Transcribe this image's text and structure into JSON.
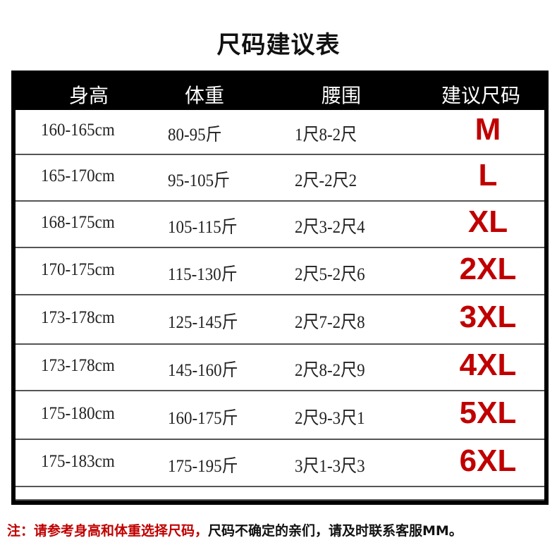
{
  "title": "尺码建议表",
  "table": {
    "headers": [
      "身高",
      "体重",
      "腰围",
      "建议尺码"
    ],
    "rows": [
      {
        "height": "160-165cm",
        "weight": "80-95斤",
        "waist": "1尺8-2尺",
        "size": "M"
      },
      {
        "height": "165-170cm",
        "weight": "95-105斤",
        "waist": "2尺-2尺2",
        "size": "L"
      },
      {
        "height": "168-175cm",
        "weight": "105-115斤",
        "waist": "2尺3-2尺4",
        "size": "XL"
      },
      {
        "height": "170-175cm",
        "weight": "115-130斤",
        "waist": "2尺5-2尺6",
        "size": "2XL"
      },
      {
        "height": "173-178cm",
        "weight": "125-145斤",
        "waist": "2尺7-2尺8",
        "size": "3XL"
      },
      {
        "height": "173-178cm",
        "weight": "145-160斤",
        "waist": "2尺8-2尺9",
        "size": "4XL"
      },
      {
        "height": "175-180cm",
        "weight": "160-175斤",
        "waist": "2尺9-3尺1",
        "size": "5XL"
      },
      {
        "height": "175-183cm",
        "weight": "175-195斤",
        "waist": "3尺1-3尺3",
        "size": "6XL"
      }
    ]
  },
  "note": {
    "red": "注：请参考身高和体重选择尺码，",
    "black": "尺码不确定的亲们，请及时联系客服MM。"
  },
  "colors": {
    "size_text": "#c00000",
    "header_bg": "#000000"
  }
}
